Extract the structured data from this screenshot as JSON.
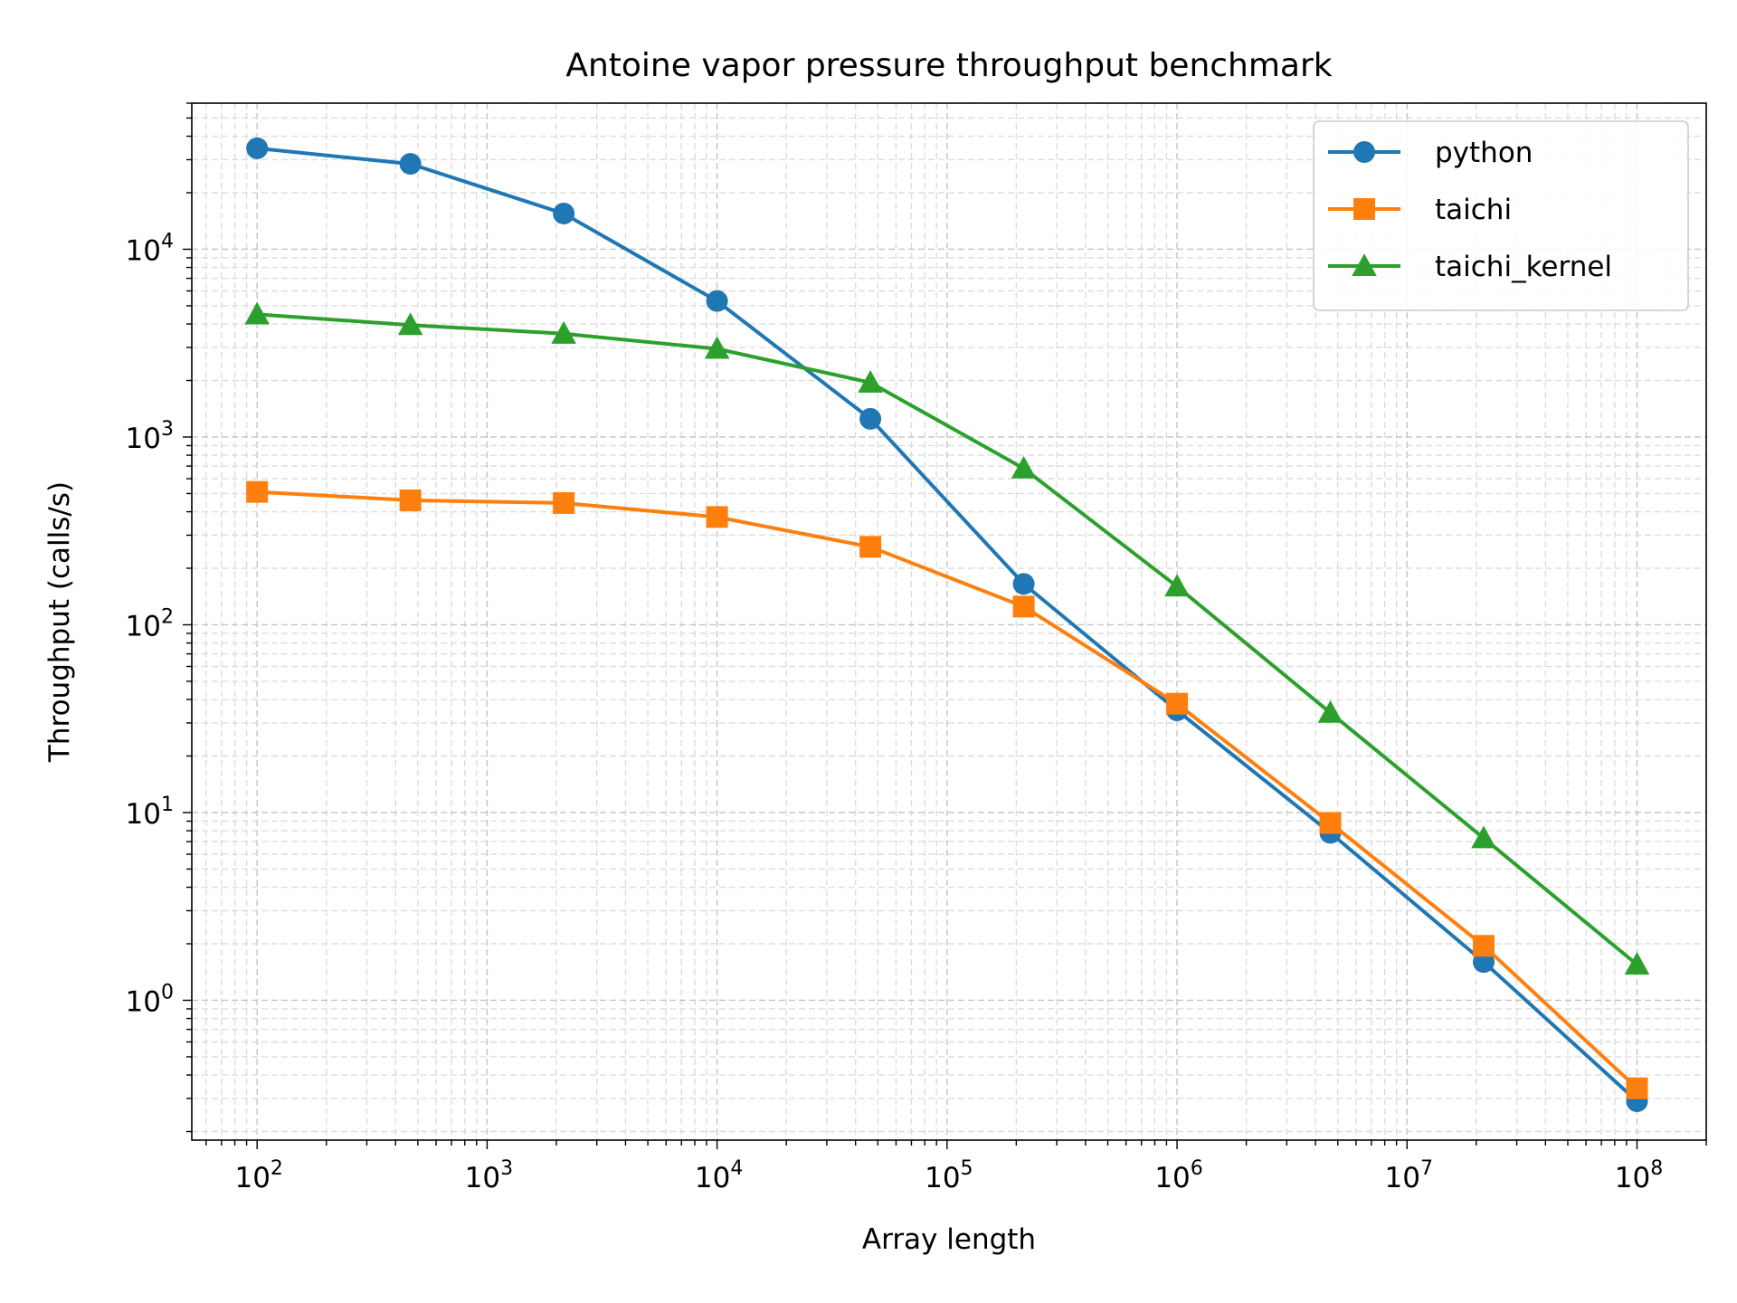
{
  "chart_data": {
    "type": "line",
    "title": "Antoine vapor pressure throughput benchmark",
    "xlabel": "Array length",
    "ylabel": "Throughput (calls/s)",
    "xscale": "log",
    "yscale": "log",
    "xlim": [
      52,
      200000000
    ],
    "ylim": [
      0.18,
      60000
    ],
    "grid": true,
    "legend_position": "top-right",
    "x_ticks": [
      {
        "base": "10",
        "exp": "2"
      },
      {
        "base": "10",
        "exp": "3"
      },
      {
        "base": "10",
        "exp": "4"
      },
      {
        "base": "10",
        "exp": "5"
      },
      {
        "base": "10",
        "exp": "6"
      },
      {
        "base": "10",
        "exp": "7"
      },
      {
        "base": "10",
        "exp": "8"
      }
    ],
    "y_ticks": [
      {
        "base": "10",
        "exp": "0"
      },
      {
        "base": "10",
        "exp": "1"
      },
      {
        "base": "10",
        "exp": "2"
      },
      {
        "base": "10",
        "exp": "3"
      },
      {
        "base": "10",
        "exp": "4"
      }
    ],
    "x": [
      100,
      464,
      2154,
      10000,
      46416,
      215443,
      1000000,
      4641589,
      21544347,
      100000000
    ],
    "series": [
      {
        "name": "python",
        "color": "#1f77b4",
        "marker": "circle",
        "values": [
          34500,
          28500,
          15500,
          5300,
          1250,
          165,
          35,
          7.8,
          1.6,
          0.29
        ]
      },
      {
        "name": "taichi",
        "color": "#ff7f0e",
        "marker": "square",
        "values": [
          510,
          460,
          445,
          375,
          260,
          125,
          38,
          8.8,
          1.95,
          0.34
        ]
      },
      {
        "name": "taichi_kernel",
        "color": "#2ca02c",
        "marker": "triangle",
        "values": [
          4500,
          3950,
          3550,
          2950,
          1950,
          680,
          160,
          34,
          7.3,
          1.55
        ]
      }
    ]
  }
}
